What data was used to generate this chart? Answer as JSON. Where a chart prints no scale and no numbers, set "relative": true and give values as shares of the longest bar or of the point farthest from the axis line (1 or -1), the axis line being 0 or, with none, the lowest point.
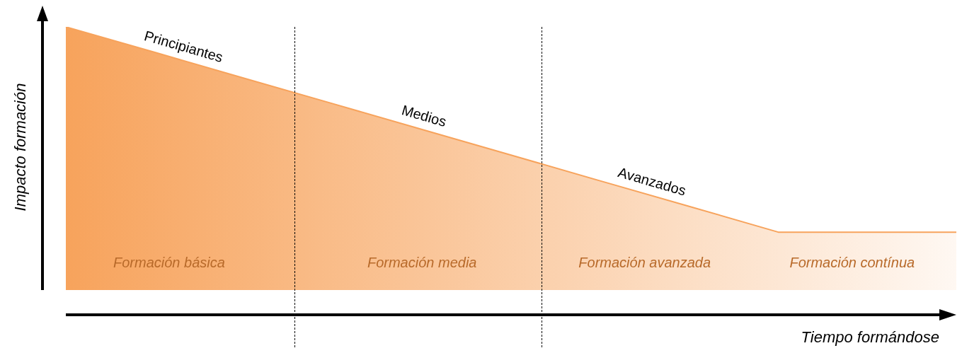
{
  "chart_data": {
    "type": "area",
    "relative": true,
    "xlabel": "Tiempo formándose",
    "ylabel": "Impacto formación",
    "legend": false,
    "categories": [
      null,
      null,
      null,
      null,
      null,
      null,
      null,
      null,
      null,
      null,
      null
    ],
    "series": [
      {
        "color": "#f7a35c",
        "values": [
          1,
          0.903,
          0.805,
          0.708,
          0.61,
          0.513,
          0.415,
          0.318,
          0.22,
          0.22,
          0.22
        ]
      }
    ],
    "annotations": [
      "Principiantes",
      "Medios",
      "Avanzados",
      "Formación básica",
      "Formación media",
      "Formación avanzada",
      "Formación contínua"
    ]
  }
}
